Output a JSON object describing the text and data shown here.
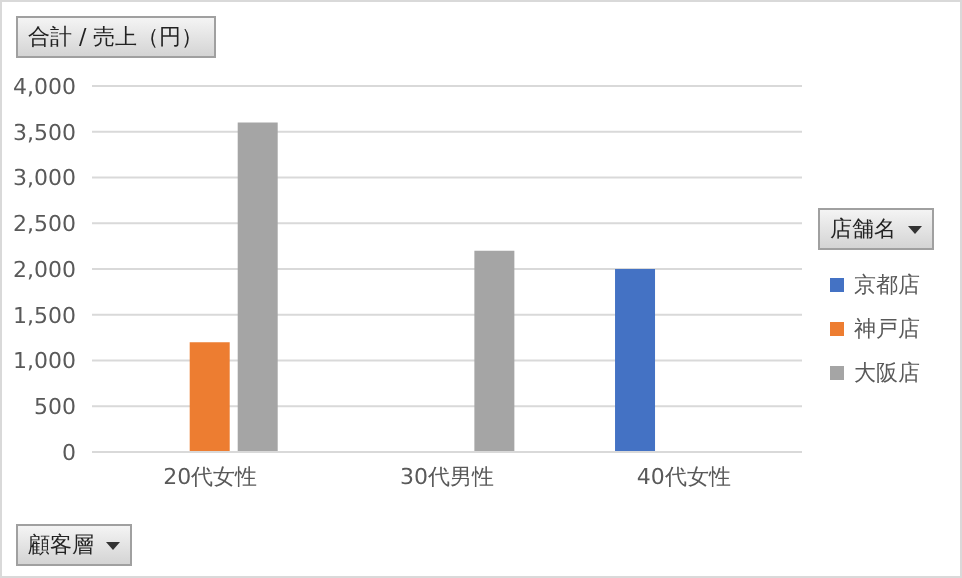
{
  "chart_data": {
    "type": "bar",
    "ylabel": "合計 / 売上（円）",
    "xlabel": "顧客層",
    "legend_title": "店舗名",
    "categories": [
      "20代女性",
      "30代男性",
      "40代女性"
    ],
    "series": [
      {
        "name": "京都店",
        "color": "#4472c4",
        "values": [
          null,
          null,
          2000
        ]
      },
      {
        "name": "神戸店",
        "color": "#ed7d31",
        "values": [
          1200,
          null,
          null
        ]
      },
      {
        "name": "大阪店",
        "color": "#a5a5a5",
        "values": [
          3600,
          2200,
          null
        ]
      }
    ],
    "ylim": [
      0,
      4000
    ],
    "yticks": [
      {
        "value": 0,
        "label": "0"
      },
      {
        "value": 500,
        "label": "500"
      },
      {
        "value": 1000,
        "label": "1,000"
      },
      {
        "value": 1500,
        "label": "1,500"
      },
      {
        "value": 2000,
        "label": "2,000"
      },
      {
        "value": 2500,
        "label": "2,500"
      },
      {
        "value": 3000,
        "label": "3,000"
      },
      {
        "value": 3500,
        "label": "3,500"
      },
      {
        "value": 4000,
        "label": "4,000"
      }
    ],
    "grid": "y",
    "legend": "right"
  }
}
